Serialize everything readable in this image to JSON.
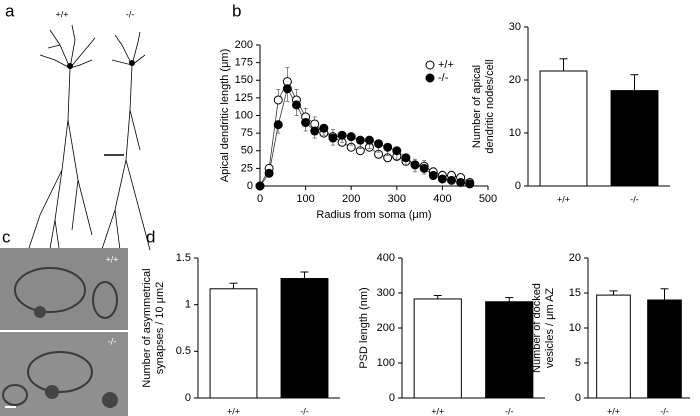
{
  "panel_labels": [
    "a",
    "b",
    "c",
    "d"
  ],
  "panel_a": {
    "genotype_labels": [
      "+/+",
      "-/-"
    ]
  },
  "panel_c": {
    "genotype_labels": [
      "+/+",
      "-/-"
    ]
  },
  "chart_data": [
    {
      "type": "line",
      "xlabel": [
        "Radius from soma (μm)"
      ],
      "ylabel": [
        "Apical dendritic length (μm)"
      ],
      "x": [
        0,
        20,
        40,
        60,
        80,
        100,
        120,
        140,
        160,
        180,
        200,
        220,
        240,
        260,
        280,
        300,
        320,
        340,
        360,
        380,
        400,
        420,
        440,
        460
      ],
      "series": [
        {
          "name": "+/+",
          "color": "#ffffff",
          "values": [
            0,
            25,
            122,
            148,
            122,
            98,
            88,
            75,
            70,
            62,
            55,
            50,
            55,
            45,
            40,
            42,
            35,
            30,
            28,
            20,
            15,
            15,
            12,
            5
          ],
          "errors": [
            0,
            5,
            15,
            20,
            15,
            12,
            10,
            10,
            10,
            10,
            10,
            10,
            10,
            10,
            10,
            10,
            8,
            8,
            8,
            6,
            6,
            6,
            5,
            3
          ]
        },
        {
          "name": "-/-",
          "color": "#000000",
          "values": [
            0,
            18,
            87,
            138,
            115,
            90,
            78,
            82,
            68,
            72,
            70,
            65,
            65,
            60,
            55,
            50,
            40,
            30,
            25,
            15,
            10,
            8,
            5,
            3
          ],
          "errors": [
            0,
            5,
            12,
            18,
            15,
            12,
            10,
            10,
            10,
            10,
            12,
            12,
            12,
            12,
            12,
            12,
            10,
            10,
            8,
            6,
            5,
            5,
            4,
            2
          ]
        }
      ],
      "xlim": [
        0,
        500
      ],
      "xticks": [
        0,
        100,
        200,
        300,
        400,
        500
      ],
      "ylim": [
        0,
        200
      ],
      "yticks": [
        0,
        25,
        50,
        75,
        100,
        125,
        150,
        175,
        200
      ],
      "legend": "upper right"
    },
    {
      "type": "bar",
      "ylabel": [
        "Number of apical",
        "dendritic nodes/cell"
      ],
      "categories": [
        "+/+",
        "-/-"
      ],
      "values": [
        21.7,
        18.0
      ],
      "errors": [
        2.3,
        3.0
      ],
      "colors": [
        "#ffffff",
        "#000000"
      ],
      "ylim": [
        0,
        30
      ],
      "yticks": [
        0,
        10,
        20,
        30
      ]
    },
    {
      "type": "bar",
      "ylabel": [
        "Number of asymmetrical",
        "synapses / 10 μm2"
      ],
      "categories": [
        "+/+",
        "-/-"
      ],
      "values": [
        1.17,
        1.28
      ],
      "errors": [
        0.06,
        0.07
      ],
      "colors": [
        "#ffffff",
        "#000000"
      ],
      "ylim": [
        0,
        1.5
      ],
      "yticks": [
        0,
        0.5,
        1,
        1.5
      ]
    },
    {
      "type": "bar",
      "ylabel": [
        "PSD length (nm)"
      ],
      "categories": [
        "+/+",
        "-/-"
      ],
      "values": [
        283,
        275
      ],
      "errors": [
        10,
        12
      ],
      "colors": [
        "#ffffff",
        "#000000"
      ],
      "ylim": [
        0,
        400
      ],
      "yticks": [
        0,
        100,
        200,
        300,
        400
      ]
    },
    {
      "type": "bar",
      "ylabel": [
        "Number of docked",
        "vesicles / μm AZ"
      ],
      "categories": [
        "+/+",
        "-/-"
      ],
      "values": [
        14.7,
        14.0
      ],
      "errors": [
        0.6,
        1.6
      ],
      "colors": [
        "#ffffff",
        "#000000"
      ],
      "ylim": [
        0,
        20
      ],
      "yticks": [
        0,
        5,
        10,
        15,
        20
      ]
    }
  ]
}
